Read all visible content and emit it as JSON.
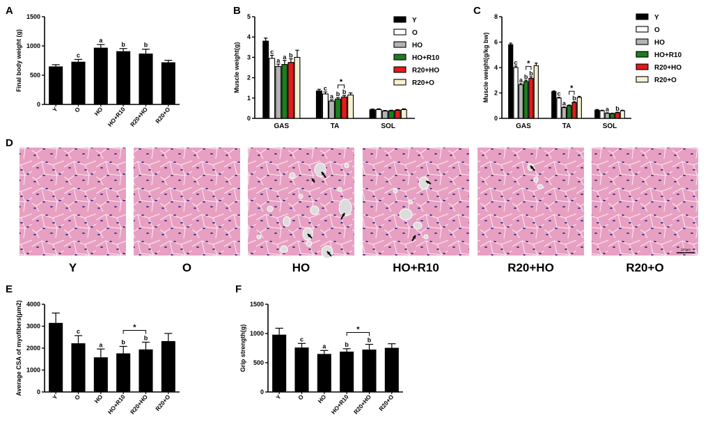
{
  "colors": {
    "Y": "#000000",
    "O": "#ffffff",
    "HO": "#b3b3b3",
    "HO+R10": "#1e7d1e",
    "R20+HO": "#e31a1c",
    "R20+O": "#f5f0d2",
    "tissue": "#e8a0c2",
    "nucleus": "#4b3a8f",
    "vacuole": "#dcdcdc"
  },
  "panel_letters": [
    "A",
    "B",
    "C",
    "D",
    "E",
    "F"
  ],
  "groups": [
    "Y",
    "O",
    "HO",
    "HO+R10",
    "R20+HO",
    "R20+O"
  ],
  "legend_items": [
    "Y",
    "O",
    "HO",
    "HO+R10",
    "R20+HO",
    "R20+O"
  ],
  "histology": {
    "labels": [
      "Y",
      "O",
      "HO",
      "HO+R10",
      "R20+HO",
      "R20+O"
    ],
    "scale_bar": "100μm",
    "arrow_counts": [
      0,
      0,
      5,
      2,
      1,
      0
    ],
    "vacuole_counts": [
      0,
      0,
      14,
      6,
      3,
      0
    ]
  },
  "chart_data": [
    {
      "panel": "A",
      "type": "bar",
      "ylabel": "Final body weight (g)",
      "xlabel": "",
      "categories": [
        "Y",
        "O",
        "HO",
        "HO+R10",
        "R20+HO",
        "R20+O"
      ],
      "values": [
        650,
        730,
        970,
        910,
        870,
        720
      ],
      "errors": [
        30,
        40,
        55,
        45,
        75,
        35
      ],
      "letters": [
        "",
        "c",
        "a",
        "b",
        "b",
        ""
      ],
      "ylim": [
        0,
        1500
      ],
      "yticks": [
        0,
        500,
        1000,
        1500
      ]
    },
    {
      "panel": "B",
      "type": "bar",
      "ylabel": "Muscle weight(g)",
      "xlabel": "",
      "categories": [
        "GAS",
        "TA",
        "SOL"
      ],
      "series": [
        {
          "name": "Y",
          "values": [
            3.8,
            1.35,
            0.42
          ],
          "errors": [
            0.15,
            0.08,
            0.04
          ]
        },
        {
          "name": "O",
          "values": [
            2.95,
            1.2,
            0.43
          ],
          "errors": [
            0.15,
            0.1,
            0.04
          ]
        },
        {
          "name": "HO",
          "values": [
            2.55,
            0.85,
            0.36
          ],
          "errors": [
            0.12,
            0.06,
            0.03
          ]
        },
        {
          "name": "HO+R10",
          "values": [
            2.65,
            0.95,
            0.37
          ],
          "errors": [
            0.2,
            0.07,
            0.03
          ]
        },
        {
          "name": "R20+HO",
          "values": [
            2.75,
            1.05,
            0.4
          ],
          "errors": [
            0.18,
            0.08,
            0.03
          ]
        },
        {
          "name": "R20+O",
          "values": [
            3.0,
            1.15,
            0.43
          ],
          "errors": [
            0.35,
            0.1,
            0.04
          ]
        }
      ],
      "letters": [
        [
          "",
          "c",
          "a",
          "a",
          "b",
          ""
        ],
        [
          "",
          "c",
          "a",
          "b",
          "b",
          ""
        ],
        [
          "",
          "",
          "",
          "",
          "",
          ""
        ]
      ],
      "sig_brackets": [
        {
          "category": 1,
          "from": 3,
          "to": 4,
          "label": "*"
        }
      ],
      "ylim": [
        0,
        5
      ],
      "yticks": [
        0,
        1,
        2,
        3,
        4,
        5
      ]
    },
    {
      "panel": "C",
      "type": "bar",
      "ylabel": "Muscle weight(g/kg bw)",
      "xlabel": "",
      "categories": [
        "GAS",
        "TA",
        "SOL"
      ],
      "series": [
        {
          "name": "Y",
          "values": [
            5.8,
            2.1,
            0.65
          ],
          "errors": [
            0.12,
            0.06,
            0.05
          ]
        },
        {
          "name": "O",
          "values": [
            4.0,
            1.6,
            0.6
          ],
          "errors": [
            0.12,
            0.06,
            0.04
          ]
        },
        {
          "name": "HO",
          "values": [
            2.65,
            0.85,
            0.4
          ],
          "errors": [
            0.1,
            0.05,
            0.04
          ]
        },
        {
          "name": "HO+R10",
          "values": [
            2.9,
            1.0,
            0.38
          ],
          "errors": [
            0.1,
            0.05,
            0.03
          ]
        },
        {
          "name": "R20+HO",
          "values": [
            3.15,
            1.25,
            0.45
          ],
          "errors": [
            0.12,
            0.06,
            0.04
          ]
        },
        {
          "name": "R20+O",
          "values": [
            4.15,
            1.65,
            0.6
          ],
          "errors": [
            0.2,
            0.08,
            0.04
          ]
        }
      ],
      "letters": [
        [
          "",
          "c",
          "a",
          "b",
          "b",
          ""
        ],
        [
          "",
          "c",
          "a",
          "",
          "b",
          ""
        ],
        [
          "",
          "",
          "a",
          "",
          "b",
          ""
        ]
      ],
      "sig_brackets": [
        {
          "category": 0,
          "from": 3,
          "to": 4,
          "label": "*"
        },
        {
          "category": 1,
          "from": 3,
          "to": 4,
          "label": "*"
        }
      ],
      "ylim": [
        0,
        8
      ],
      "yticks": [
        0,
        2,
        4,
        6,
        8
      ]
    },
    {
      "panel": "E",
      "type": "bar",
      "ylabel": "Average CSA of myofibers(μm2)",
      "xlabel": "",
      "categories": [
        "Y",
        "O",
        "HO",
        "HO+R10",
        "R20+HO",
        "R20+O"
      ],
      "values": [
        3150,
        2220,
        1580,
        1760,
        1940,
        2320
      ],
      "errors": [
        450,
        350,
        380,
        320,
        330,
        350
      ],
      "letters": [
        "",
        "c",
        "a",
        "b",
        "b",
        ""
      ],
      "sig_brackets": [
        {
          "from": 3,
          "to": 4,
          "label": "*"
        }
      ],
      "ylim": [
        0,
        4000
      ],
      "yticks": [
        0,
        1000,
        2000,
        3000,
        4000
      ]
    },
    {
      "panel": "F",
      "type": "bar",
      "ylabel": "Grip strength(g)",
      "xlabel": "",
      "categories": [
        "Y",
        "O",
        "HO",
        "HO+R10",
        "R20+HO",
        "R20+O"
      ],
      "values": [
        980,
        760,
        650,
        690,
        725,
        755
      ],
      "errors": [
        110,
        70,
        60,
        50,
        90,
        70
      ],
      "letters": [
        "",
        "c",
        "a",
        "b",
        "b",
        ""
      ],
      "sig_brackets": [
        {
          "from": 3,
          "to": 4,
          "label": "*"
        }
      ],
      "ylim": [
        0,
        1500
      ],
      "yticks": [
        0,
        500,
        1000,
        1500
      ]
    }
  ]
}
